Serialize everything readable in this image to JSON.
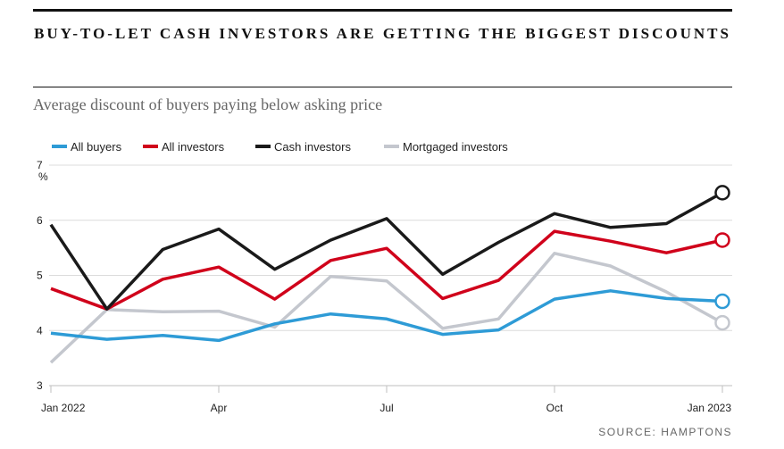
{
  "header": {
    "title": "BUY-TO-LET CASH INVESTORS ARE GETTING THE BIGGEST DISCOUNTS",
    "subtitle": "Average discount of buyers paying below asking price",
    "source": "SOURCE: HAMPTONS"
  },
  "chart_data": {
    "type": "line",
    "title": "BUY-TO-LET CASH INVESTORS ARE GETTING THE BIGGEST DISCOUNTS",
    "subtitle": "Average discount of buyers paying below asking price",
    "ylabel": "%",
    "ylim": [
      3,
      7
    ],
    "yticks": [
      3,
      4,
      5,
      6,
      7
    ],
    "x": [
      "Jan 2022",
      "Feb 2022",
      "Mar 2022",
      "Apr 2022",
      "May 2022",
      "Jun 2022",
      "Jul 2022",
      "Aug 2022",
      "Sep 2022",
      "Oct 2022",
      "Nov 2022",
      "Dec 2022",
      "Jan 2023"
    ],
    "xtick_labels": [
      {
        "index": 0,
        "label": "Jan 2022"
      },
      {
        "index": 3,
        "label": "Apr"
      },
      {
        "index": 6,
        "label": "Jul"
      },
      {
        "index": 9,
        "label": "Oct"
      },
      {
        "index": 12,
        "label": "Jan 2023"
      }
    ],
    "legend_position": "top-left",
    "series": [
      {
        "name": "All buyers",
        "color": "#2E9BD6",
        "values": [
          3.95,
          3.84,
          3.91,
          3.82,
          4.12,
          4.3,
          4.21,
          3.93,
          4.01,
          4.57,
          4.72,
          4.58,
          4.53
        ]
      },
      {
        "name": "All investors",
        "color": "#D0021B",
        "values": [
          4.76,
          4.39,
          4.93,
          5.15,
          4.57,
          5.27,
          5.49,
          4.58,
          4.91,
          5.8,
          5.62,
          5.41,
          5.64
        ]
      },
      {
        "name": "Cash investors",
        "color": "#1A1A1A",
        "values": [
          5.92,
          4.39,
          5.47,
          5.84,
          5.11,
          5.64,
          6.03,
          5.02,
          5.6,
          6.12,
          5.87,
          5.94,
          6.5
        ]
      },
      {
        "name": "Mortgaged investors",
        "color": "#C4C7CE",
        "values": [
          3.42,
          4.38,
          4.34,
          4.35,
          4.06,
          4.98,
          4.9,
          4.04,
          4.21,
          5.4,
          5.17,
          4.7,
          4.14
        ]
      }
    ]
  }
}
